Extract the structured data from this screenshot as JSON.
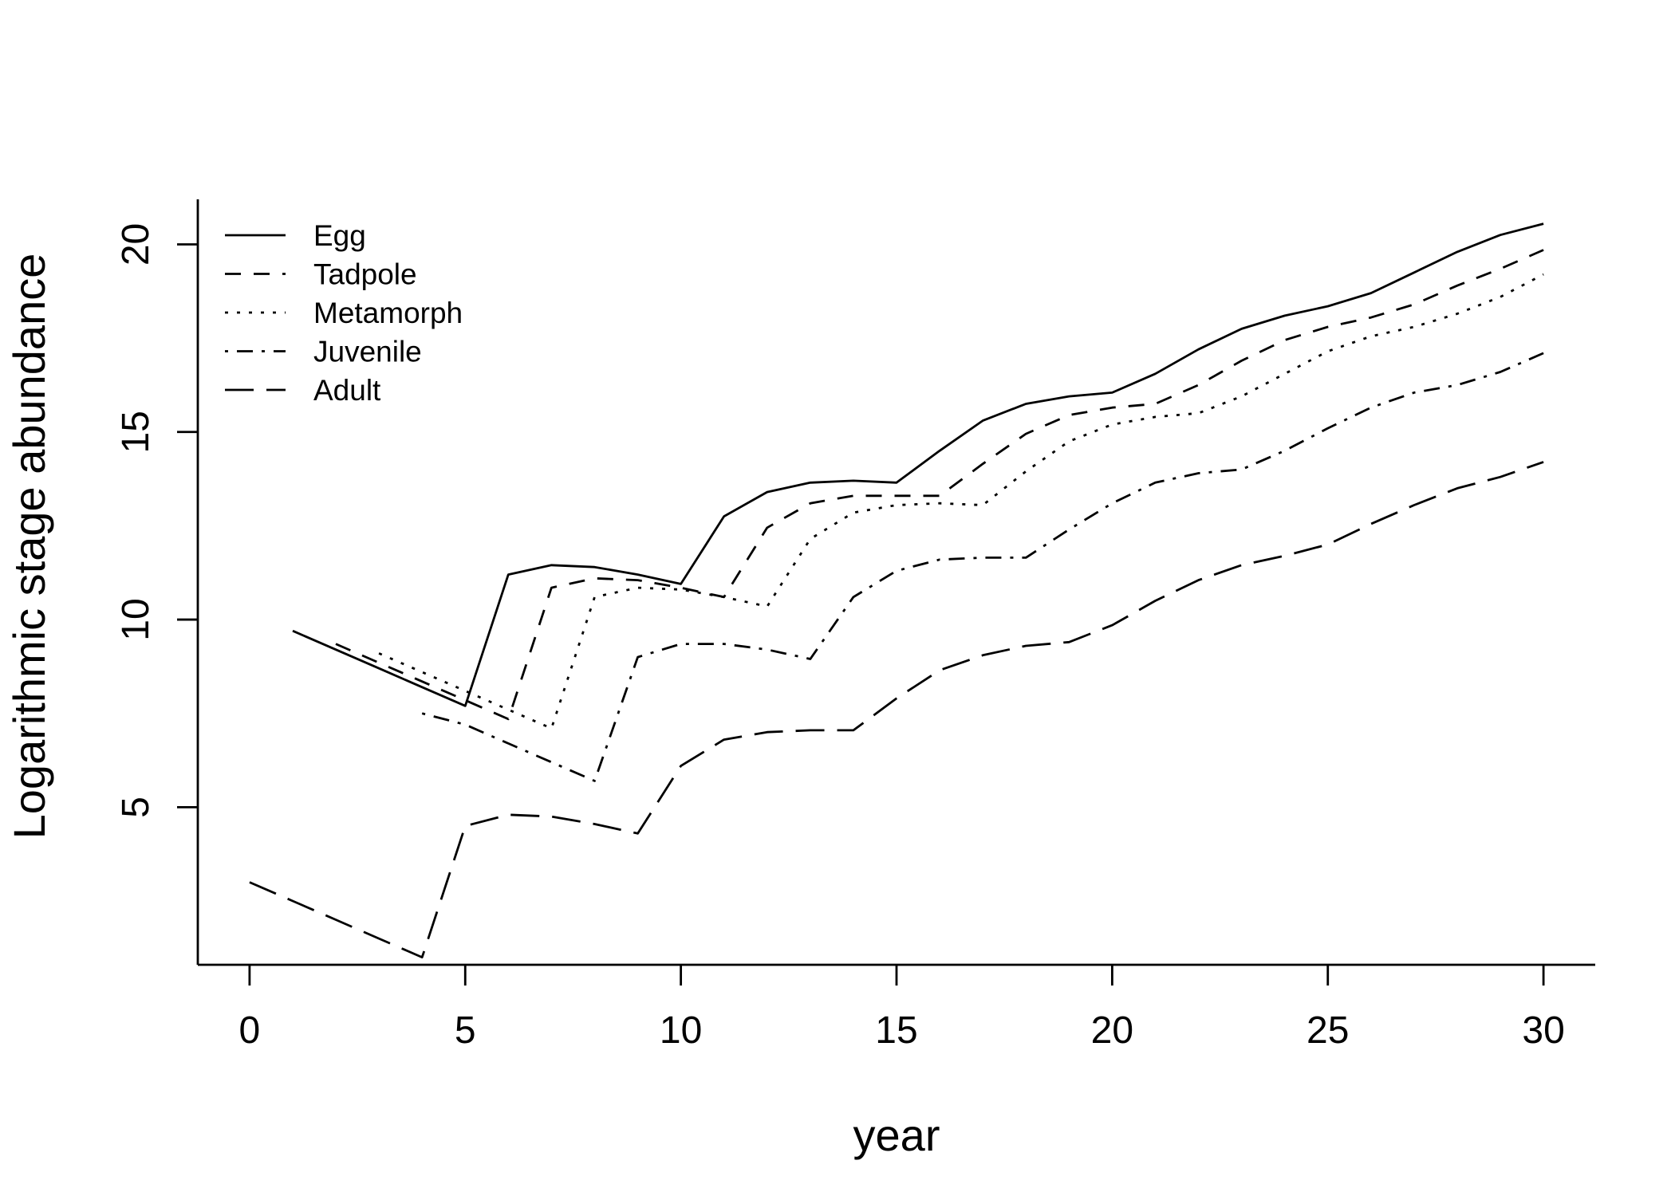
{
  "chart_data": {
    "type": "line",
    "title": "",
    "xlabel": "year",
    "ylabel": "Logarithmic stage abundance",
    "xlim": [
      -1.2,
      31.2
    ],
    "ylim": [
      0.8,
      21.2
    ],
    "x_ticks": [
      0,
      5,
      10,
      15,
      20,
      25,
      30
    ],
    "y_ticks": [
      5,
      10,
      15,
      20
    ],
    "grid": false,
    "legend_position": "top-left",
    "legend_frame": false,
    "colors": {
      "line": "#000000",
      "axis": "#000000",
      "background": "#ffffff"
    },
    "series": [
      {
        "name": "Egg",
        "line_style": "solid",
        "x": [
          1,
          2,
          3,
          4,
          5,
          6,
          7,
          8,
          9,
          10,
          11,
          12,
          13,
          14,
          15,
          16,
          17,
          18,
          19,
          20,
          21,
          22,
          23,
          24,
          25,
          26,
          27,
          28,
          29,
          30
        ],
        "values": [
          9.7,
          9.2,
          8.7,
          8.2,
          7.7,
          11.2,
          11.45,
          11.4,
          11.2,
          10.95,
          12.75,
          13.4,
          13.65,
          13.7,
          13.65,
          14.5,
          15.3,
          15.75,
          15.95,
          16.05,
          16.55,
          17.2,
          17.75,
          18.1,
          18.35,
          18.7,
          19.25,
          19.8,
          20.25,
          20.55
        ]
      },
      {
        "name": "Tadpole",
        "line_style": "dashed",
        "x": [
          2,
          3,
          4,
          5,
          6,
          7,
          8,
          9,
          10,
          11,
          12,
          13,
          14,
          15,
          16,
          17,
          18,
          19,
          20,
          21,
          22,
          23,
          24,
          25,
          26,
          27,
          28,
          29,
          30
        ],
        "values": [
          9.35,
          8.85,
          8.35,
          7.85,
          7.35,
          10.85,
          11.1,
          11.05,
          10.85,
          10.6,
          12.45,
          13.1,
          13.3,
          13.3,
          13.3,
          14.15,
          14.95,
          15.45,
          15.65,
          15.75,
          16.25,
          16.9,
          17.45,
          17.8,
          18.05,
          18.4,
          18.9,
          19.35,
          19.85
        ]
      },
      {
        "name": "Metamorph",
        "line_style": "dotted",
        "x": [
          3,
          4,
          5,
          6,
          7,
          8,
          9,
          10,
          11,
          12,
          13,
          14,
          15,
          16,
          17,
          18,
          19,
          20,
          21,
          22,
          23,
          24,
          25,
          26,
          27,
          28,
          29,
          30
        ],
        "values": [
          9.1,
          8.6,
          8.1,
          7.6,
          7.1,
          10.6,
          10.85,
          10.8,
          10.6,
          10.35,
          12.15,
          12.85,
          13.05,
          13.1,
          13.05,
          13.95,
          14.75,
          15.2,
          15.4,
          15.5,
          15.95,
          16.55,
          17.15,
          17.55,
          17.8,
          18.15,
          18.6,
          19.2
        ]
      },
      {
        "name": "Juvenile",
        "line_style": "dotdash",
        "x": [
          4,
          5,
          6,
          7,
          8,
          9,
          10,
          11,
          12,
          13,
          14,
          15,
          16,
          17,
          18,
          19,
          20,
          21,
          22,
          23,
          24,
          25,
          26,
          27,
          28,
          29,
          30
        ],
        "values": [
          7.5,
          7.2,
          6.7,
          6.2,
          5.7,
          9.0,
          9.35,
          9.35,
          9.2,
          8.95,
          10.6,
          11.3,
          11.6,
          11.65,
          11.65,
          12.4,
          13.1,
          13.65,
          13.9,
          14.0,
          14.5,
          15.1,
          15.65,
          16.05,
          16.25,
          16.6,
          17.1
        ]
      },
      {
        "name": "Adult",
        "line_style": "longdash",
        "x": [
          0,
          1,
          2,
          3,
          4,
          5,
          6,
          7,
          8,
          9,
          10,
          11,
          12,
          13,
          14,
          15,
          16,
          17,
          18,
          19,
          20,
          21,
          22,
          23,
          24,
          25,
          26,
          27,
          28,
          29,
          30
        ],
        "values": [
          3.0,
          2.5,
          2.0,
          1.5,
          1.0,
          4.5,
          4.8,
          4.75,
          4.55,
          4.3,
          6.1,
          6.8,
          7.0,
          7.05,
          7.05,
          7.9,
          8.65,
          9.05,
          9.3,
          9.4,
          9.85,
          10.5,
          11.05,
          11.45,
          11.7,
          12.0,
          12.55,
          13.05,
          13.5,
          13.8,
          14.2
        ]
      }
    ]
  }
}
